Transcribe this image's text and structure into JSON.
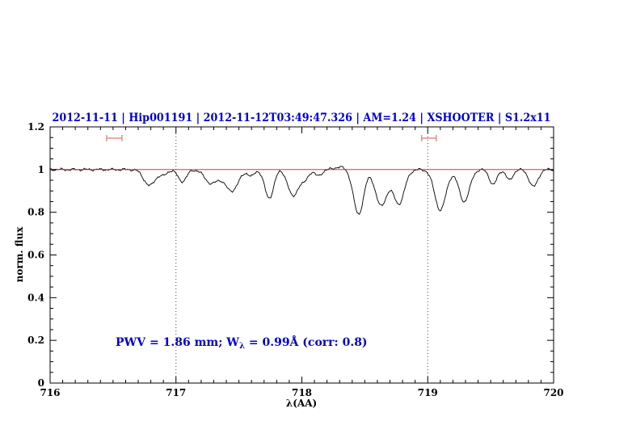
{
  "colors": {
    "blue_text": "#0000cd",
    "spectrum": "#000000",
    "continuum_line": "#bb2222",
    "range_marker": "#dd7777",
    "frame": "#000000",
    "dotted_line": "#444444"
  },
  "chart_data": {
    "type": "line",
    "title": "2012-11-11 | Hip001191 | 2012-11-12T03:49:47.326 | AM=1.24 | XSHOOTER | S1.2x11",
    "xlabel": "λ(AA)",
    "ylabel": "norm. flux",
    "xlim": [
      716,
      720
    ],
    "ylim": [
      0,
      1.2
    ],
    "x_major_ticks": [
      716,
      717,
      718,
      719,
      720
    ],
    "x_minor_step": 0.1,
    "y_major_ticks": [
      0,
      0.2,
      0.4,
      0.6,
      0.8,
      1,
      1.2
    ],
    "y_minor_step": 0.05,
    "grid": "off",
    "legend": "none",
    "dotted_vlines": [
      717,
      719
    ],
    "continuum_level": 1.0,
    "range_markers": [
      {
        "x_center": 716.51,
        "half_width": 0.061,
        "y": 1.147
      },
      {
        "x_center": 719.01,
        "half_width": 0.058,
        "y": 1.147
      }
    ],
    "annotation": {
      "text_prefix": "PWV = 1.86 mm; W",
      "subscript": "λ",
      "text_suffix": " = 0.99Å (corr: 0.8)",
      "x": 716.52,
      "y": 0.174
    },
    "spectrum": {
      "continuum": 1.0,
      "sample_step": 0.008,
      "noise": [
        [
          0.0035,
          61.8,
          0
        ],
        [
          0.0025,
          141.3,
          2.1
        ],
        [
          0.002,
          311.7,
          0.5
        ]
      ],
      "absorption_lines": [
        [
          716.79,
          0.075,
          0.045
        ],
        [
          716.9,
          0.025,
          0.03
        ],
        [
          717.05,
          0.055,
          0.035
        ],
        [
          717.28,
          0.065,
          0.05
        ],
        [
          717.44,
          0.1,
          0.055
        ],
        [
          717.6,
          0.03,
          0.025
        ],
        [
          717.74,
          0.135,
          0.035
        ],
        [
          717.93,
          0.125,
          0.04
        ],
        [
          718.02,
          0.05,
          0.03
        ],
        [
          718.13,
          0.03,
          0.028
        ],
        [
          718.3,
          -0.012,
          0.04
        ],
        [
          718.45,
          0.21,
          0.04
        ],
        [
          718.63,
          0.17,
          0.045
        ],
        [
          718.77,
          0.16,
          0.045
        ],
        [
          719.1,
          0.19,
          0.045
        ],
        [
          719.29,
          0.15,
          0.042
        ],
        [
          719.52,
          0.07,
          0.03
        ],
        [
          719.65,
          0.05,
          0.026
        ],
        [
          719.84,
          0.08,
          0.035
        ]
      ]
    }
  }
}
